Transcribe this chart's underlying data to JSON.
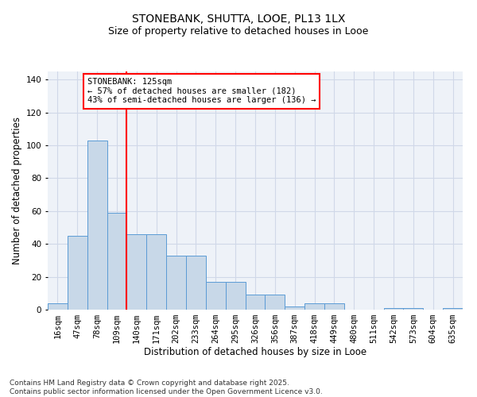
{
  "title_line1": "STONEBANK, SHUTTA, LOOE, PL13 1LX",
  "title_line2": "Size of property relative to detached houses in Looe",
  "xlabel": "Distribution of detached houses by size in Looe",
  "ylabel": "Number of detached properties",
  "categories": [
    "16sqm",
    "47sqm",
    "78sqm",
    "109sqm",
    "140sqm",
    "171sqm",
    "202sqm",
    "233sqm",
    "264sqm",
    "295sqm",
    "326sqm",
    "356sqm",
    "387sqm",
    "418sqm",
    "449sqm",
    "480sqm",
    "511sqm",
    "542sqm",
    "573sqm",
    "604sqm",
    "635sqm"
  ],
  "values": [
    4,
    45,
    103,
    59,
    46,
    46,
    33,
    33,
    17,
    17,
    9,
    9,
    2,
    4,
    4,
    0,
    0,
    1,
    1,
    0,
    1
  ],
  "bar_color": "#c8d8e8",
  "bar_edge_color": "#5b9bd5",
  "bar_width": 1.0,
  "redline_x": 3.5,
  "annotation_text": "STONEBANK: 125sqm\n← 57% of detached houses are smaller (182)\n43% of semi-detached houses are larger (136) →",
  "annotation_box_color": "white",
  "annotation_box_edge": "red",
  "ylim": [
    0,
    145
  ],
  "yticks": [
    0,
    20,
    40,
    60,
    80,
    100,
    120,
    140
  ],
  "grid_color": "#d0d8e8",
  "background_color": "#eef2f8",
  "footnote": "Contains HM Land Registry data © Crown copyright and database right 2025.\nContains public sector information licensed under the Open Government Licence v3.0.",
  "title_fontsize": 10,
  "subtitle_fontsize": 9,
  "tick_fontsize": 7.5,
  "label_fontsize": 8.5,
  "annotation_fontsize": 7.5,
  "footnote_fontsize": 6.5
}
